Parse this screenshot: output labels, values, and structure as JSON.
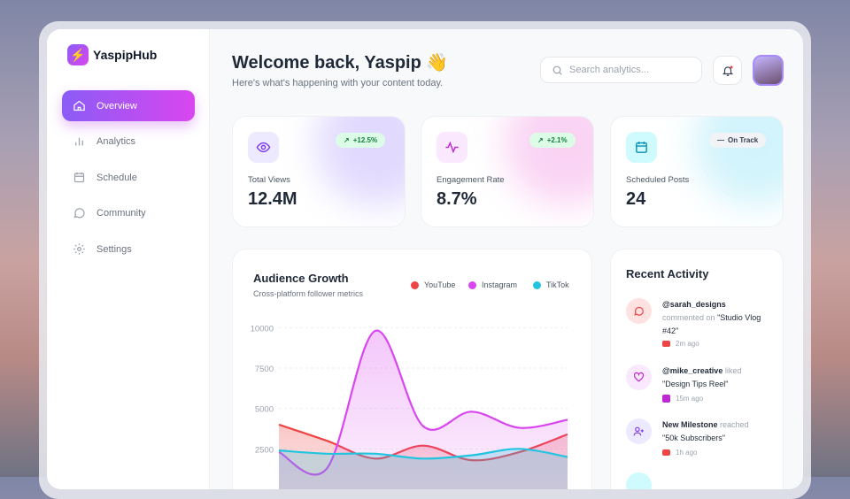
{
  "app": {
    "name": "YaspipHub",
    "logo_icon": "lightning-icon"
  },
  "sidebar": {
    "items": [
      {
        "label": "Overview",
        "icon": "home-icon",
        "active": true
      },
      {
        "label": "Analytics",
        "icon": "bar-chart-icon"
      },
      {
        "label": "Schedule",
        "icon": "calendar-icon"
      },
      {
        "label": "Community",
        "icon": "chat-bubble-icon"
      },
      {
        "label": "Settings",
        "icon": "gear-icon"
      }
    ]
  },
  "header": {
    "title": "Welcome back, Yaspip 👋",
    "subtitle": "Here's what's happening with your content today.",
    "search_placeholder": "Search analytics..."
  },
  "stats": [
    {
      "label": "Total Views",
      "value": "12.4M",
      "badge": "+12.5%",
      "badge_icon": "arrow-up-right-icon",
      "icon": "eye-icon",
      "color": "#7c3aed"
    },
    {
      "label": "Engagement Rate",
      "value": "8.7%",
      "badge": "+2.1%",
      "badge_icon": "arrow-up-right-icon",
      "icon": "activity-icon",
      "color": "#c026d3"
    },
    {
      "label": "Scheduled Posts",
      "value": "24",
      "badge": "On Track",
      "badge_icon": "dash-icon",
      "icon": "calendar-icon",
      "color": "#0891b2"
    }
  ],
  "chart_data": {
    "type": "area",
    "title": "Audience Growth",
    "subtitle": "Cross-platform follower metrics",
    "ylim": [
      0,
      10000
    ],
    "yticks": [
      "10000",
      "7500",
      "5000",
      "2500"
    ],
    "grid": true,
    "legend": "top-right",
    "series": [
      {
        "name": "YouTube",
        "color": "#ef4444",
        "values": [
          4000,
          3000,
          1900,
          2700,
          1800,
          2300,
          3400
        ]
      },
      {
        "name": "Instagram",
        "color": "#d946ef",
        "values": [
          2300,
          1300,
          9800,
          3900,
          4800,
          3800,
          4300
        ]
      },
      {
        "name": "TikTok",
        "color": "#22c5e0",
        "values": [
          2400,
          2200,
          2200,
          1900,
          2100,
          2500,
          2000
        ]
      }
    ]
  },
  "activity": {
    "title": "Recent Activity",
    "items": [
      {
        "user": "@sarah_designs",
        "action": "commented on",
        "target": "\"Studio Vlog #42\"",
        "time": "2m ago",
        "icon": "comment-icon",
        "platform": "youtube"
      },
      {
        "user": "@mike_creative",
        "action": "liked",
        "target": "\"Design Tips Reel\"",
        "time": "15m ago",
        "icon": "heart-icon",
        "platform": "instagram"
      },
      {
        "user": "New Milestone",
        "action": "reached",
        "target": "\"50k Subscribers\"",
        "time": "1h ago",
        "icon": "user-plus-icon",
        "platform": "youtube"
      }
    ]
  }
}
